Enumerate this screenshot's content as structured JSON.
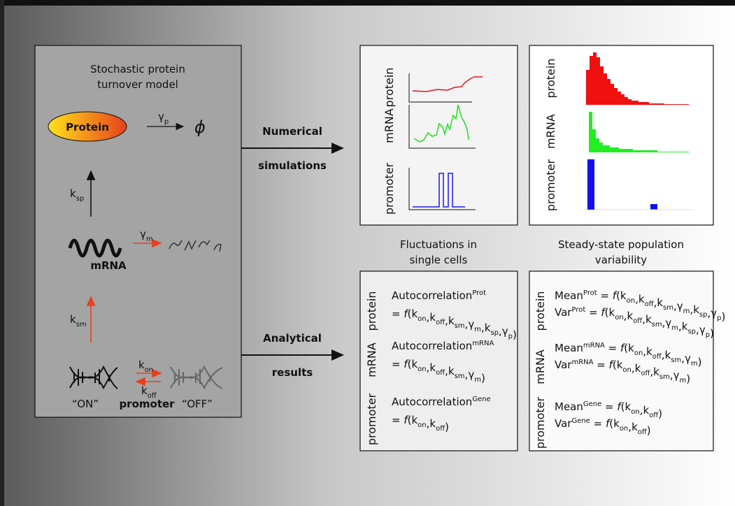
{
  "model": {
    "title_lines": [
      "Stochastic protein",
      "turnover model"
    ],
    "protein": "Protein",
    "protein_decay": {
      "symbol": "γ",
      "subscript": "p"
    },
    "null_symbol": "ϕ",
    "translation": {
      "symbol": "k",
      "subscript": "sp"
    },
    "mrna": "mRNA",
    "mrna_decay": {
      "symbol": "γ",
      "subscript": "m"
    },
    "transcription": {
      "symbol": "k",
      "subscript": "sm"
    },
    "activation": {
      "symbol": "k",
      "subscript": "on"
    },
    "deactivation": {
      "symbol": "k",
      "subscript": "off"
    },
    "on_state": "“ON”",
    "promoter": "promoter",
    "off_state": "“OFF”"
  },
  "arrows": [
    {
      "lines": [
        "Numerical",
        "simulations"
      ]
    },
    {
      "lines": [
        "Analytical",
        "results"
      ]
    }
  ],
  "columns": [
    {
      "caption_lines": [
        "Fluctuations in",
        "single cells"
      ],
      "plot_labels": [
        "protein",
        "mRNA",
        "promoter"
      ],
      "results": [
        {
          "label": "protein",
          "formulas": [
            {
              "name": "Autocorrelation",
              "superscript": "Prot",
              "function": "f",
              "arguments": [
                {
                  "symbol": "k",
                  "subscript": "on"
                },
                {
                  "symbol": "k",
                  "subscript": "off"
                },
                {
                  "symbol": "k",
                  "subscript": "sm"
                },
                {
                  "symbol": "γ",
                  "subscript": "m"
                },
                {
                  "symbol": "k",
                  "subscript": "sp"
                },
                {
                  "symbol": "γ",
                  "subscript": "p"
                }
              ]
            }
          ]
        },
        {
          "label": "mRNA",
          "formulas": [
            {
              "name": "Autocorrelation",
              "superscript": "mRNA",
              "function": "f",
              "arguments": [
                {
                  "symbol": "k",
                  "subscript": "on"
                },
                {
                  "symbol": "k",
                  "subscript": "off"
                },
                {
                  "symbol": "k",
                  "subscript": "sm"
                },
                {
                  "symbol": "γ",
                  "subscript": "m"
                }
              ]
            }
          ]
        },
        {
          "label": "promoter",
          "formulas": [
            {
              "name": "Autocorrelation",
              "superscript": "Gene",
              "function": "f",
              "arguments": [
                {
                  "symbol": "k",
                  "subscript": "on"
                },
                {
                  "symbol": "k",
                  "subscript": "off"
                }
              ]
            }
          ]
        }
      ]
    },
    {
      "caption_lines": [
        "Steady-state population",
        "variability"
      ],
      "plot_labels": [
        "protein",
        "mRNA",
        "promoter"
      ],
      "results": [
        {
          "label": "protein",
          "formulas": [
            {
              "name": "Mean",
              "superscript": "Prot",
              "function": "f",
              "arguments": [
                {
                  "symbol": "k",
                  "subscript": "on"
                },
                {
                  "symbol": "k",
                  "subscript": "off"
                },
                {
                  "symbol": "k",
                  "subscript": "sm"
                },
                {
                  "symbol": "γ",
                  "subscript": "m"
                },
                {
                  "symbol": "k",
                  "subscript": "sp"
                },
                {
                  "symbol": "γ",
                  "subscript": "p"
                }
              ]
            },
            {
              "name": "Var",
              "superscript": "Prot",
              "function": "f",
              "arguments": [
                {
                  "symbol": "k",
                  "subscript": "on"
                },
                {
                  "symbol": "k",
                  "subscript": "off"
                },
                {
                  "symbol": "k",
                  "subscript": "sm"
                },
                {
                  "symbol": "γ",
                  "subscript": "m"
                },
                {
                  "symbol": "k",
                  "subscript": "sp"
                },
                {
                  "symbol": "γ",
                  "subscript": "p"
                }
              ]
            }
          ]
        },
        {
          "label": "mRNA",
          "formulas": [
            {
              "name": "Mean",
              "superscript": "mRNA",
              "function": "f",
              "arguments": [
                {
                  "symbol": "k",
                  "subscript": "on"
                },
                {
                  "symbol": "k",
                  "subscript": "off"
                },
                {
                  "symbol": "k",
                  "subscript": "sm"
                },
                {
                  "symbol": "γ",
                  "subscript": "m"
                }
              ]
            },
            {
              "name": "Var",
              "superscript": "mRNA",
              "function": "f",
              "arguments": [
                {
                  "symbol": "k",
                  "subscript": "on"
                },
                {
                  "symbol": "k",
                  "subscript": "off"
                },
                {
                  "symbol": "k",
                  "subscript": "sm"
                },
                {
                  "symbol": "γ",
                  "subscript": "m"
                }
              ]
            }
          ]
        },
        {
          "label": "promoter",
          "formulas": [
            {
              "name": "Mean",
              "superscript": "Gene",
              "function": "f",
              "arguments": [
                {
                  "symbol": "k",
                  "subscript": "on"
                },
                {
                  "symbol": "k",
                  "subscript": "off"
                }
              ]
            },
            {
              "name": "Var",
              "superscript": "Gene",
              "function": "f",
              "arguments": [
                {
                  "symbol": "k",
                  "subscript": "on"
                },
                {
                  "symbol": "k",
                  "subscript": "off"
                }
              ]
            }
          ]
        }
      ]
    }
  ]
}
